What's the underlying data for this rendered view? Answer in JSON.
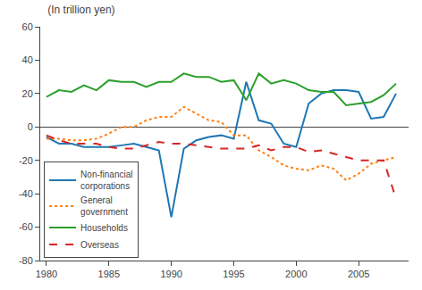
{
  "chart_data": {
    "type": "line",
    "title": "(In trillion yen)",
    "x": [
      1980,
      1981,
      1982,
      1983,
      1984,
      1985,
      1986,
      1987,
      1988,
      1989,
      1990,
      1991,
      1992,
      1993,
      1994,
      1995,
      1996,
      1997,
      1998,
      1999,
      2000,
      2001,
      2002,
      2003,
      2004,
      2005,
      2006,
      2007,
      2008
    ],
    "series": [
      {
        "name": "Non-financial\ncorporations",
        "line_style": "solid",
        "values": [
          -6,
          -10,
          -10,
          -12,
          -12,
          -12,
          -11,
          -10,
          -12,
          -14,
          -54,
          -13,
          -8,
          -6,
          -5,
          -7,
          27,
          4,
          2,
          -10,
          -12,
          14,
          20,
          22,
          22,
          21,
          5,
          6,
          20
        ]
      },
      {
        "name": "General\ngovernment",
        "line_style": "dotted",
        "values": [
          -7,
          -7,
          -8,
          -8,
          -7,
          -4,
          0,
          0,
          4,
          6,
          6,
          12,
          8,
          4,
          3,
          -5,
          -5,
          -14,
          -18,
          -23,
          -25,
          -26,
          -23,
          -25,
          -32,
          -28,
          -22,
          -20,
          -18
        ]
      },
      {
        "name": "Households",
        "line_style": "solid",
        "values": [
          18,
          22,
          21,
          25,
          22,
          28,
          27,
          27,
          24,
          27,
          27,
          32,
          30,
          30,
          27,
          28,
          16,
          32,
          26,
          28,
          26,
          22,
          21,
          21,
          13,
          14,
          15,
          19,
          26
        ]
      },
      {
        "name": "Overseas",
        "line_style": "dashed",
        "values": [
          -5,
          -8,
          -10,
          -10,
          -10,
          -12,
          -13,
          -13,
          -11,
          -9,
          -10,
          -10,
          -11,
          -12,
          -13,
          -13,
          -13,
          -11,
          -14,
          -12,
          -12,
          -15,
          -14,
          -16,
          -18,
          -20,
          -20,
          -20,
          -43
        ]
      }
    ],
    "xlim": [
      1979.5,
      2009
    ],
    "xticks": [
      1980,
      1985,
      1990,
      1995,
      2000,
      2005
    ],
    "ylim": [
      -80,
      60
    ],
    "yticks": [
      -80,
      -60,
      -40,
      -20,
      0,
      20,
      40,
      60
    ],
    "grid": false,
    "legend": "lower left"
  }
}
